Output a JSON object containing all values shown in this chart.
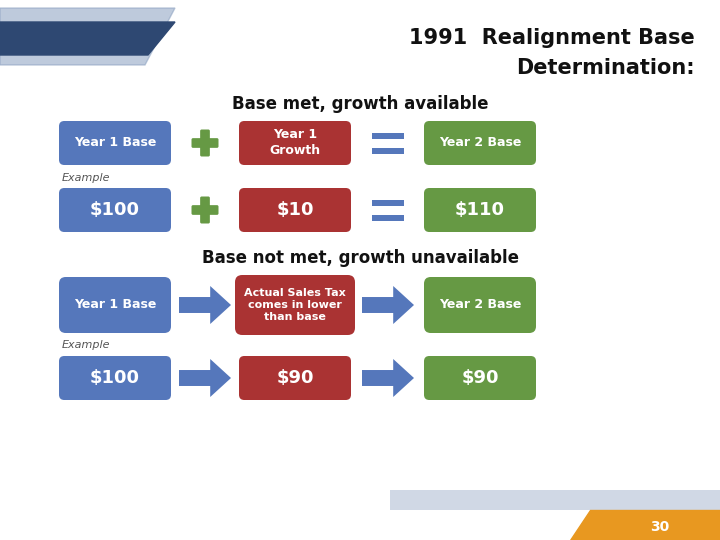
{
  "title_line1": "1991  Realignment Base",
  "title_line2": "Determination:",
  "bg_color": "#f0f2f7",
  "title_color": "#111111",
  "section1_title": "Base met, growth available",
  "section2_title": "Base not met, growth unavailable",
  "blue_color": "#5577bb",
  "red_color": "#aa3333",
  "green_color": "#669944",
  "arrow_blue": "#5577bb",
  "plus_color": "#669944",
  "equals_color": "#5577bb",
  "example_text": "Example",
  "example_color": "#555555",
  "page_number": "30",
  "orange_color": "#e89820",
  "corner_blue_dark": "#2e4872",
  "corner_blue_light": "#8aa0c0",
  "stripe_color": "#b8c4d8",
  "white": "#ffffff"
}
